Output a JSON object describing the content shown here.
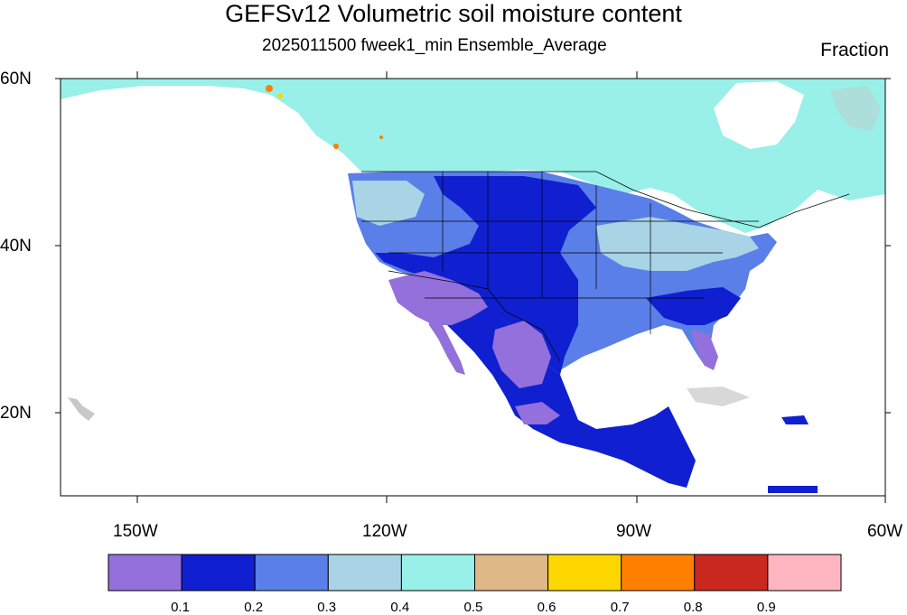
{
  "title": "GEFSv12 Volumetric soil moisture content",
  "subtitle": "2025011500 fweek1_min Ensemble_Average",
  "units": "Fraction",
  "lat_labels": [
    "60N",
    "40N",
    "20N"
  ],
  "lon_labels": [
    "150W",
    "120W",
    "90W",
    "60W"
  ],
  "colorbar": {
    "colors": [
      "#9370db",
      "#1020d0",
      "#5a7fe8",
      "#a8d4e6",
      "#98f0e8",
      "#deb887",
      "#ffd700",
      "#ff7f00",
      "#c8281e",
      "#ffb6c1"
    ],
    "labels": [
      "0.1",
      "0.2",
      "0.3",
      "0.4",
      "0.5",
      "0.6",
      "0.7",
      "0.8",
      "0.9"
    ]
  },
  "colors": {
    "missing": "#c8c8c8",
    "border": "#000000"
  }
}
